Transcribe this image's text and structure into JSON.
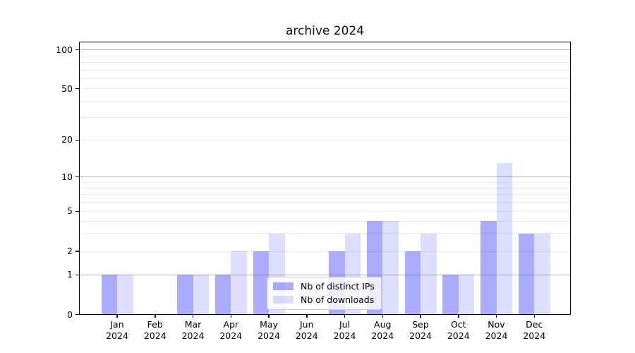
{
  "title": "archive 2024",
  "chart_data": {
    "type": "bar",
    "title": "archive 2024",
    "categories": [
      "Jan 2024",
      "Feb 2024",
      "Mar 2024",
      "Apr 2024",
      "May 2024",
      "Jun 2024",
      "Jul 2024",
      "Aug 2024",
      "Sep 2024",
      "Oct 2024",
      "Nov 2024",
      "Dec 2024"
    ],
    "series": [
      {
        "name": "Nb of distinct IPs",
        "color": "rgba(0,0,255,0.33)",
        "values": [
          1,
          0,
          1,
          1,
          2,
          0,
          2,
          4,
          2,
          1,
          4,
          3
        ]
      },
      {
        "name": "Nb of downloads",
        "color": "rgba(0,0,255,0.13)",
        "values": [
          1,
          0,
          1,
          2,
          3,
          0,
          3,
          4,
          3,
          1,
          13,
          3
        ]
      }
    ],
    "xlabel": "",
    "ylabel": "",
    "y_axis": {
      "scale": "log-like",
      "tick_values": [
        0,
        1,
        2,
        5,
        10,
        20,
        50,
        100
      ],
      "tick_labels": [
        "0",
        "1",
        "2",
        "5",
        "10",
        "20",
        "50",
        "100"
      ],
      "ylim": [
        0,
        115
      ],
      "major_gridlines": [
        1,
        10,
        100
      ],
      "minor_gridlines": [
        2,
        3,
        4,
        5,
        6,
        7,
        8,
        9,
        20,
        30,
        40,
        50,
        60,
        70,
        80,
        90
      ]
    },
    "grid": true,
    "legend_position": "lower-center",
    "colors": {
      "major_grid": "#b3b3b3",
      "minor_grid": "#e9e9e9",
      "spine": "#000000",
      "text": "#000000",
      "background": "#ffffff"
    }
  }
}
